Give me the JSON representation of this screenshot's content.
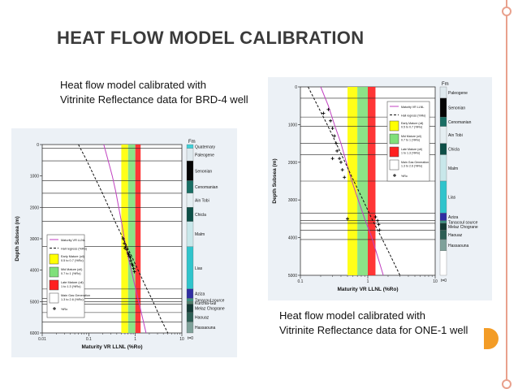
{
  "slide": {
    "title": "HEAT FLOW MODEL CALIBRATION",
    "caption_left": [
      "Heat flow model calibrated with",
      "Vitrinite Reflectance data for BRD-4 well"
    ],
    "caption_right": [
      "Heat flow model calibrated with",
      "Vitrinite Reflectance data for ONE-1 well"
    ]
  },
  "colors": {
    "accent_rail": "#e9a18d",
    "title": "#3b3b3b",
    "orange_tab": "#f39c26"
  },
  "chart_data": [
    {
      "type": "line",
      "well": "BRD-4",
      "xlabel": "Maturity VR LLNL (%Ro)",
      "ylabel": "Depth Subsea (m)",
      "xscale": "log",
      "xlim": [
        0.01,
        10
      ],
      "ylim": [
        0,
        6000
      ],
      "x_ticks": [
        "0.01",
        "0.1",
        "1",
        "10"
      ],
      "y_ticks": [
        "0",
        "1000",
        "2000",
        "3000",
        "4000",
        "5000",
        "6000"
      ],
      "fm_header": "Fm",
      "formations": [
        {
          "name": "Quaternary",
          "top": 0,
          "base": 120,
          "color": "#3fd0d8"
        },
        {
          "name": "Paleogene",
          "top": 120,
          "base": 520,
          "color": "#dfe9ee"
        },
        {
          "name": "Senonian",
          "top": 520,
          "base": 1150,
          "color": "#050505"
        },
        {
          "name": "Cenomanian",
          "top": 1150,
          "base": 1550,
          "color": "#1a6e64"
        },
        {
          "name": "Ain Tobi",
          "top": 1550,
          "base": 2000,
          "color": "#e5eef2"
        },
        {
          "name": "Chicla",
          "top": 2000,
          "base": 2450,
          "color": "#0e4f47"
        },
        {
          "name": "Malm",
          "top": 2450,
          "base": 3250,
          "color": "#c8e7ea"
        },
        {
          "name": "Lias",
          "top": 3250,
          "base": 4600,
          "color": "#30c4cc"
        },
        {
          "name": "Aziza",
          "top": 4600,
          "base": 4900,
          "color": "#2f2ea2"
        },
        {
          "name": "Tanacoul source",
          "top": 4900,
          "base": 5000,
          "color": "#3a9080"
        },
        {
          "name": "Kurchla-Gul",
          "top": 5000,
          "base": 5080,
          "color": "#4e7f6a"
        },
        {
          "name": "Melaz Chograne",
          "top": 5080,
          "base": 5350,
          "color": "#123a35"
        },
        {
          "name": "Haouaz",
          "top": 5350,
          "base": 5650,
          "color": "#2d5f55"
        },
        {
          "name": "Hassaouna",
          "top": 5650,
          "base": 6000,
          "color": "#7ea19a"
        }
      ],
      "time_label": "t=0",
      "maturity_zones": [
        {
          "name": "Early Mature (oil)",
          "range_label": "0.5 to 0.7 (%Ro)",
          "from": 0.5,
          "to": 0.7,
          "color": "#ffff00"
        },
        {
          "name": "Mid Mature (oil)",
          "range_label": "0.7 to 1 (%Ro)",
          "from": 0.7,
          "to": 1.0,
          "color": "#7fe07a"
        },
        {
          "name": "Late Mature (oil)",
          "range_label": "1 to 1.3 (%Ro)",
          "from": 1.0,
          "to": 1.3,
          "color": "#ff2020"
        },
        {
          "name": "Main Gas Generation",
          "range_label": "1.3 to 2.6 (%Ro)",
          "from": 1.3,
          "to": 2.6,
          "color": "#ffffff"
        }
      ],
      "series": [
        {
          "name": "Maturity VR LLNL",
          "color": "#c040c0",
          "dash": false,
          "points": [
            [
              0.21,
              0
            ],
            [
              0.26,
              500
            ],
            [
              0.32,
              1000
            ],
            [
              0.38,
              1500
            ],
            [
              0.44,
              2000
            ],
            [
              0.51,
              2500
            ],
            [
              0.58,
              3000
            ],
            [
              0.68,
              3500
            ],
            [
              0.82,
              4000
            ],
            [
              0.98,
              4500
            ],
            [
              1.18,
              5000
            ],
            [
              1.42,
              5500
            ],
            [
              1.7,
              6000
            ]
          ]
        },
        {
          "name": "Hall regress (%Ro)",
          "color": "#111111",
          "dash": true,
          "points": [
            [
              0.06,
              0
            ],
            [
              0.09,
              500
            ],
            [
              0.13,
              1000
            ],
            [
              0.19,
              1500
            ],
            [
              0.27,
              2000
            ],
            [
              0.38,
              2500
            ],
            [
              0.55,
              3000
            ],
            [
              0.8,
              3500
            ],
            [
              1.15,
              4000
            ],
            [
              1.65,
              4500
            ],
            [
              2.4,
              5000
            ],
            [
              3.4,
              5500
            ],
            [
              5.0,
              6000
            ]
          ]
        }
      ],
      "vr_label": "%Ro",
      "vr_points": [
        [
          0.55,
          3000
        ],
        [
          0.58,
          3150
        ],
        [
          0.62,
          3250
        ],
        [
          0.66,
          3350
        ],
        [
          0.7,
          3450
        ],
        [
          0.74,
          3550
        ],
        [
          0.78,
          3600
        ],
        [
          0.8,
          3700
        ],
        [
          0.84,
          3800
        ],
        [
          0.88,
          3850
        ],
        [
          0.92,
          3950
        ],
        [
          0.96,
          4050
        ],
        [
          0.6,
          3300
        ],
        [
          0.72,
          3500
        ]
      ]
    },
    {
      "type": "line",
      "well": "ONE-1",
      "xlabel": "Maturity VR LLNL (%Ro)",
      "ylabel": "Depth Subsea (m)",
      "xscale": "log",
      "xlim": [
        0.1,
        10
      ],
      "ylim": [
        0,
        5000
      ],
      "x_ticks": [
        "0.1",
        "1",
        "10"
      ],
      "y_ticks": [
        "0",
        "1000",
        "2000",
        "3000",
        "4000",
        "5000"
      ],
      "fm_header": "Fm",
      "formations": [
        {
          "name": "Paleogene",
          "top": 0,
          "base": 300,
          "color": "#dfe9ee"
        },
        {
          "name": "Senonian",
          "top": 300,
          "base": 800,
          "color": "#050505"
        },
        {
          "name": "Cenomanian",
          "top": 800,
          "base": 1050,
          "color": "#1a6e64"
        },
        {
          "name": "Ain Tobi",
          "top": 1050,
          "base": 1500,
          "color": "#e5eef2"
        },
        {
          "name": "Chicla",
          "top": 1500,
          "base": 1800,
          "color": "#0e4f47"
        },
        {
          "name": "Malm",
          "top": 1800,
          "base": 2500,
          "color": "#c8e7ea"
        },
        {
          "name": "Lias",
          "top": 2500,
          "base": 3350,
          "color": "#30c4cc"
        },
        {
          "name": "Aziza",
          "top": 3350,
          "base": 3550,
          "color": "#2f2ea2"
        },
        {
          "name": "Tanacoul source",
          "top": 3550,
          "base": 3620,
          "color": "#3a9080"
        },
        {
          "name": "Melaz Chograne",
          "top": 3620,
          "base": 3800,
          "color": "#123a35"
        },
        {
          "name": "Haouaz",
          "top": 3800,
          "base": 4050,
          "color": "#2d5f55"
        },
        {
          "name": "Hassaouna",
          "top": 4050,
          "base": 4350,
          "color": "#7ea19a"
        }
      ],
      "time_label": "t=0",
      "maturity_zones": [
        {
          "name": "Early Mature (oil)",
          "range_label": "0.5 to 0.7 (%Ro)",
          "from": 0.5,
          "to": 0.7,
          "color": "#ffff00"
        },
        {
          "name": "Mid Mature (oil)",
          "range_label": "0.7 to 1 (%Ro)",
          "from": 0.7,
          "to": 1.0,
          "color": "#7fe07a"
        },
        {
          "name": "Late Mature (oil)",
          "range_label": "1 to 1.3 (%Ro)",
          "from": 1.0,
          "to": 1.3,
          "color": "#ff2020"
        },
        {
          "name": "Main Gas Generation",
          "range_label": "1.3 to 2.6 (%Ro)",
          "from": 1.3,
          "to": 2.6,
          "color": "#ffffff"
        }
      ],
      "series": [
        {
          "name": "Maturity VR LLNL",
          "color": "#c040c0",
          "dash": false,
          "points": [
            [
              0.2,
              0
            ],
            [
              0.26,
              500
            ],
            [
              0.32,
              1000
            ],
            [
              0.4,
              1500
            ],
            [
              0.48,
              2000
            ],
            [
              0.58,
              2500
            ],
            [
              0.72,
              3000
            ],
            [
              0.9,
              3500
            ],
            [
              1.15,
              4000
            ],
            [
              1.4,
              4500
            ],
            [
              1.7,
              5000
            ]
          ]
        },
        {
          "name": "Hall regress (%Ro)",
          "color": "#111111",
          "dash": true,
          "points": [
            [
              0.13,
              0
            ],
            [
              0.18,
              500
            ],
            [
              0.25,
              1000
            ],
            [
              0.34,
              1500
            ],
            [
              0.46,
              2000
            ],
            [
              0.62,
              2500
            ],
            [
              0.85,
              3000
            ],
            [
              1.15,
              3500
            ],
            [
              1.6,
              4000
            ],
            [
              2.2,
              4500
            ],
            [
              3.0,
              5000
            ]
          ]
        }
      ],
      "vr_label": "%Ro",
      "vr_points": [
        [
          0.22,
          700
        ],
        [
          0.26,
          600
        ],
        [
          0.28,
          900
        ],
        [
          0.3,
          1100
        ],
        [
          0.32,
          1300
        ],
        [
          0.34,
          1500
        ],
        [
          0.35,
          1700
        ],
        [
          0.38,
          1900
        ],
        [
          0.4,
          2000
        ],
        [
          0.42,
          2200
        ],
        [
          0.45,
          2400
        ],
        [
          0.3,
          1900
        ],
        [
          0.5,
          3500
        ],
        [
          1.3,
          3450
        ],
        [
          1.4,
          3550
        ],
        [
          1.5,
          3800
        ],
        [
          1.45,
          3650
        ]
      ]
    }
  ]
}
